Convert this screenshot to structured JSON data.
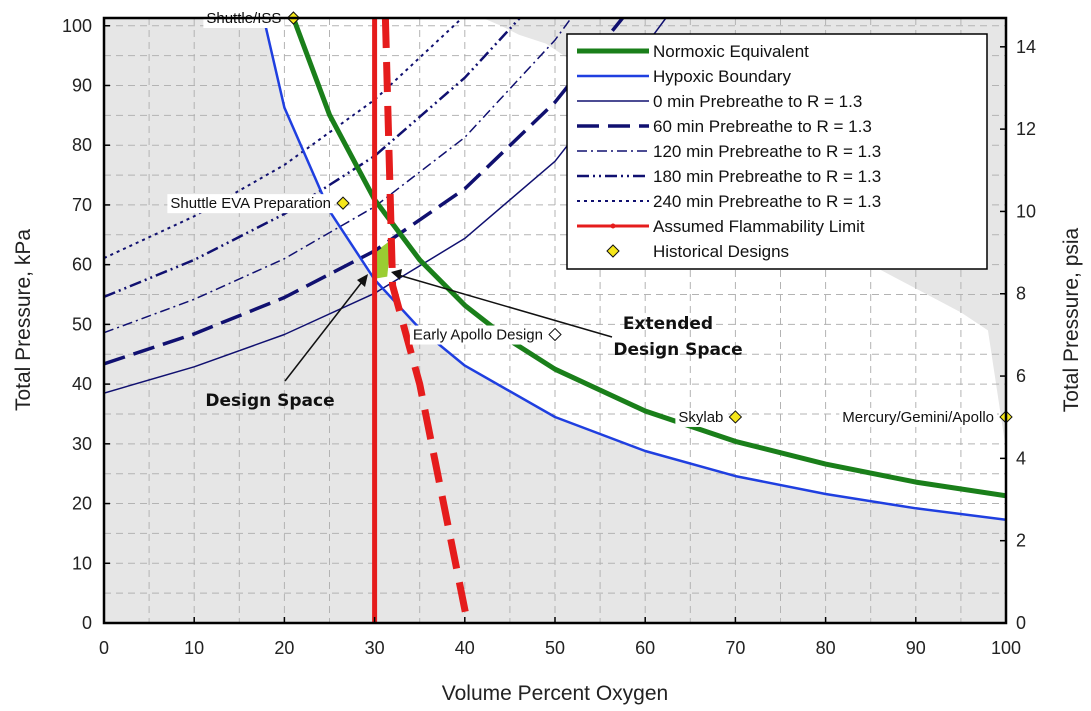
{
  "chart_data": {
    "type": "line",
    "xlabel": "Volume Percent Oxygen",
    "ylabel": "Total Pressure, kPa",
    "y2label": "Total Pressure, psia",
    "xlim": [
      0,
      100
    ],
    "ylim": [
      0,
      101.3
    ],
    "y2lim": [
      0,
      14.7
    ],
    "x_ticks": [
      "0",
      "10",
      "20",
      "30",
      "40",
      "50",
      "60",
      "70",
      "80",
      "90",
      "100"
    ],
    "y_ticks": [
      "0",
      "10",
      "20",
      "30",
      "40",
      "50",
      "60",
      "70",
      "80",
      "90",
      "100"
    ],
    "y2_ticks": [
      "0",
      "2",
      "4",
      "6",
      "8",
      "10",
      "12",
      "14"
    ],
    "grid": "dashed",
    "legend_position": "top-right",
    "series": [
      {
        "name": "Normoxic Equivalent",
        "color": "#1a7f1a",
        "style": "solid-thick",
        "x": [
          21,
          25,
          30,
          35,
          40,
          45,
          50,
          60,
          70,
          80,
          90,
          100
        ],
        "y": [
          101.3,
          85.1,
          70.9,
          60.8,
          53.2,
          47.3,
          42.5,
          35.5,
          30.4,
          26.6,
          23.6,
          21.3
        ]
      },
      {
        "name": "Hypoxic Boundary",
        "color": "#1f3fe0",
        "style": "solid",
        "x": [
          17.7,
          20,
          25,
          30,
          35,
          40,
          50,
          60,
          70,
          80,
          90,
          100
        ],
        "y": [
          101.3,
          86.3,
          69.0,
          57.5,
          49.3,
          43.1,
          34.5,
          28.8,
          24.6,
          21.6,
          19.2,
          17.3
        ]
      },
      {
        "name": "0 min Prebreathe to R = 1.3",
        "color": "#101070",
        "style": "thin",
        "x": [
          0,
          10,
          20,
          30,
          40,
          50,
          60,
          62.3
        ],
        "y": [
          38.5,
          42.9,
          48.3,
          55.2,
          64.4,
          77.3,
          96.6,
          101.3
        ]
      },
      {
        "name": "60 min Prebreathe to R = 1.3",
        "color": "#101070",
        "style": "long-dash",
        "x": [
          0,
          10,
          20,
          30,
          40,
          50,
          57.5
        ],
        "y": [
          43.4,
          48.4,
          54.5,
          62.3,
          72.7,
          87.2,
          101.3
        ]
      },
      {
        "name": "120 min Prebreathe to R = 1.3",
        "color": "#101070",
        "style": "dash-dot",
        "x": [
          0,
          10,
          20,
          30,
          40,
          50,
          51.8
        ],
        "y": [
          48.6,
          54.2,
          61.0,
          69.7,
          81.3,
          97.6,
          101.3
        ]
      },
      {
        "name": "180 min Prebreathe to R = 1.3",
        "color": "#101070",
        "style": "dash-dot-dot",
        "x": [
          0,
          10,
          20,
          30,
          40,
          46.1
        ],
        "y": [
          54.6,
          60.8,
          68.5,
          78.2,
          91.3,
          101.3
        ]
      },
      {
        "name": "240 min Prebreathe to R = 1.3",
        "color": "#101070",
        "style": "dotted",
        "x": [
          0,
          10,
          20,
          30,
          39.7
        ],
        "y": [
          61.1,
          68.1,
          76.7,
          87.6,
          101.3
        ]
      },
      {
        "name": "Assumed Flammability Limit",
        "color": "#e51c1c",
        "style": "solid-and-dashed",
        "x": [
          30,
          30,
          31.2,
          32,
          35,
          40.3
        ],
        "y": [
          101.3,
          0,
          101.3,
          56.5,
          40,
          0
        ]
      }
    ],
    "historical_designs": {
      "name": "Historical Designs",
      "color": "#f5e61a",
      "points": [
        {
          "label": "Shuttle/ISS",
          "x": 21,
          "y": 101.3,
          "marker": "filled"
        },
        {
          "label": "Shuttle EVA Preparation",
          "x": 26.5,
          "y": 70.3,
          "marker": "filled"
        },
        {
          "label": "Early Apollo Design",
          "x": 50,
          "y": 48.3,
          "marker": "open"
        },
        {
          "label": "Skylab",
          "x": 70,
          "y": 34.5,
          "marker": "filled"
        },
        {
          "label": "Mercury/Gemini/Apollo",
          "x": 100,
          "y": 34.5,
          "marker": "filled"
        }
      ]
    },
    "regions": {
      "design_space": "Design Space",
      "extended_design_space_line1": "Extended",
      "extended_design_space_line2": "Design Space",
      "design_space_color": "#9acd32"
    },
    "colors": {
      "excluded_region": "#e6e6e6",
      "grid": "#b3b3b3"
    }
  }
}
